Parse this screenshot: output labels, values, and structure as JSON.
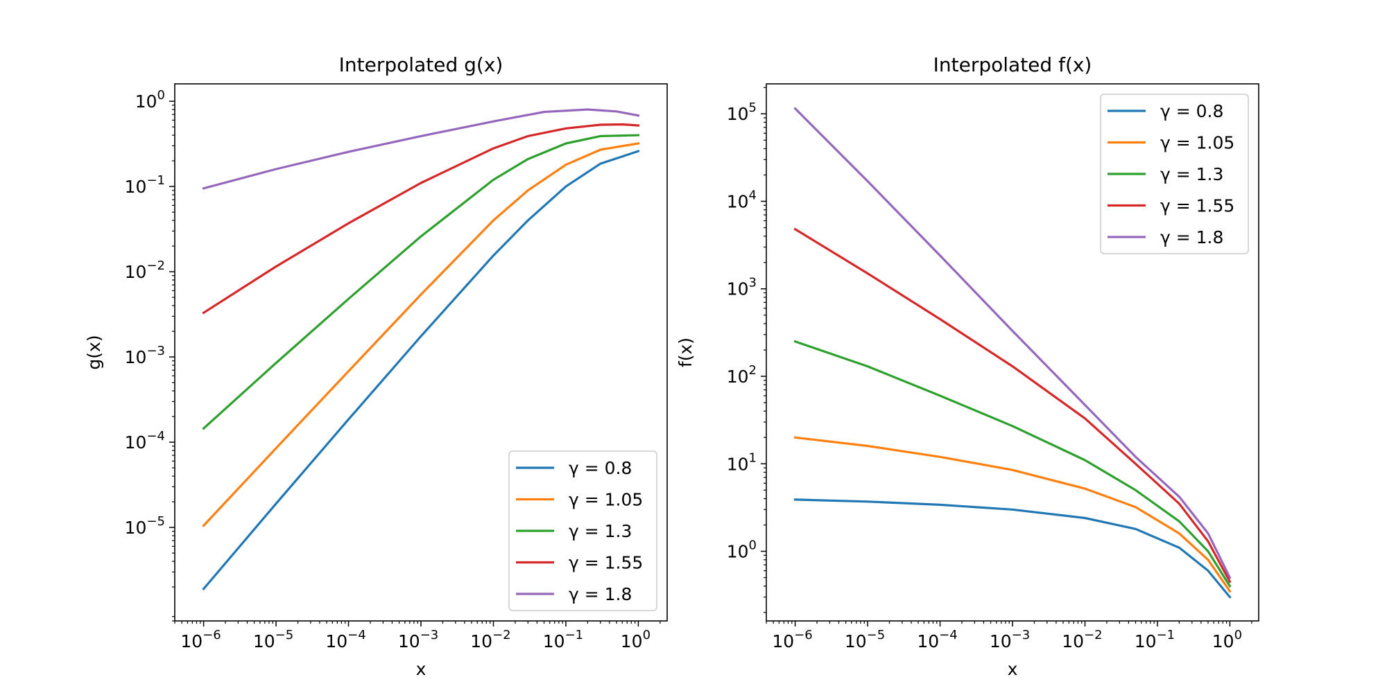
{
  "chart_data": [
    {
      "type": "line",
      "title": "Interpolated g(x)",
      "xlabel": "x",
      "ylabel": "g(x)",
      "xscale": "log",
      "yscale": "log",
      "xlim": [
        4e-07,
        2.5
      ],
      "ylim": [
        8e-07,
        1.6
      ],
      "x_ticks": [
        {
          "value": 1e-06,
          "label": "10",
          "exp": "−6"
        },
        {
          "value": 1e-05,
          "label": "10",
          "exp": "−5"
        },
        {
          "value": 0.0001,
          "label": "10",
          "exp": "−4"
        },
        {
          "value": 0.001,
          "label": "10",
          "exp": "−3"
        },
        {
          "value": 0.01,
          "label": "10",
          "exp": "−2"
        },
        {
          "value": 0.1,
          "label": "10",
          "exp": "−1"
        },
        {
          "value": 1,
          "label": "10",
          "exp": "0"
        }
      ],
      "y_ticks": [
        {
          "value": 1e-05,
          "label": "10",
          "exp": "−5"
        },
        {
          "value": 0.0001,
          "label": "10",
          "exp": "−4"
        },
        {
          "value": 0.001,
          "label": "10",
          "exp": "−3"
        },
        {
          "value": 0.01,
          "label": "10",
          "exp": "−2"
        },
        {
          "value": 0.1,
          "label": "10",
          "exp": "−1"
        },
        {
          "value": 1,
          "label": "10",
          "exp": "0"
        }
      ],
      "legend_position": "bottom-right",
      "series": [
        {
          "name": "γ = 0.8",
          "gamma": "0.8",
          "color": "#1f77b4",
          "x": [
            1e-06,
            1e-05,
            0.0001,
            0.001,
            0.01,
            0.03,
            0.1,
            0.3,
            1
          ],
          "y": [
            1.9e-06,
            1.9e-05,
            0.000185,
            0.00175,
            0.0155,
            0.04,
            0.1,
            0.185,
            0.26
          ]
        },
        {
          "name": "γ = 1.05",
          "gamma": "1.05",
          "color": "#ff7f0e",
          "x": [
            1e-06,
            1e-05,
            0.0001,
            0.001,
            0.01,
            0.03,
            0.1,
            0.3,
            1
          ],
          "y": [
            1.05e-05,
            8.5e-05,
            0.00068,
            0.0054,
            0.04,
            0.09,
            0.18,
            0.27,
            0.32
          ]
        },
        {
          "name": "γ = 1.3",
          "gamma": "1.3",
          "color": "#2ca02c",
          "x": [
            1e-06,
            1e-05,
            0.0001,
            0.001,
            0.01,
            0.03,
            0.1,
            0.3,
            1
          ],
          "y": [
            0.000145,
            0.00085,
            0.0048,
            0.026,
            0.12,
            0.21,
            0.32,
            0.39,
            0.4
          ]
        },
        {
          "name": "γ = 1.55",
          "gamma": "1.55",
          "color": "#d62728",
          "x": [
            1e-06,
            1e-05,
            0.0001,
            0.001,
            0.01,
            0.03,
            0.1,
            0.3,
            0.6,
            1
          ],
          "y": [
            0.0033,
            0.0115,
            0.037,
            0.11,
            0.28,
            0.39,
            0.48,
            0.53,
            0.535,
            0.52
          ]
        },
        {
          "name": "γ = 1.8",
          "gamma": "1.8",
          "color": "#9467bd",
          "x": [
            1e-06,
            1e-05,
            0.0001,
            0.001,
            0.01,
            0.05,
            0.2,
            0.5,
            1
          ],
          "y": [
            0.095,
            0.16,
            0.255,
            0.39,
            0.58,
            0.75,
            0.8,
            0.76,
            0.68
          ]
        }
      ]
    },
    {
      "type": "line",
      "title": "Interpolated f(x)",
      "xlabel": "x",
      "ylabel": "f(x)",
      "xscale": "log",
      "yscale": "log",
      "xlim": [
        4e-07,
        2.5
      ],
      "ylim": [
        0.16,
        220000.0
      ],
      "x_ticks": [
        {
          "value": 1e-06,
          "label": "10",
          "exp": "−6"
        },
        {
          "value": 1e-05,
          "label": "10",
          "exp": "−5"
        },
        {
          "value": 0.0001,
          "label": "10",
          "exp": "−4"
        },
        {
          "value": 0.001,
          "label": "10",
          "exp": "−3"
        },
        {
          "value": 0.01,
          "label": "10",
          "exp": "−2"
        },
        {
          "value": 0.1,
          "label": "10",
          "exp": "−1"
        },
        {
          "value": 1,
          "label": "10",
          "exp": "0"
        }
      ],
      "y_ticks": [
        {
          "value": 1,
          "label": "10",
          "exp": "0"
        },
        {
          "value": 10,
          "label": "10",
          "exp": "1"
        },
        {
          "value": 100,
          "label": "10",
          "exp": "2"
        },
        {
          "value": 1000,
          "label": "10",
          "exp": "3"
        },
        {
          "value": 10000,
          "label": "10",
          "exp": "4"
        },
        {
          "value": 100000,
          "label": "10",
          "exp": "5"
        }
      ],
      "legend_position": "top-right",
      "series": [
        {
          "name": "γ = 0.8",
          "gamma": "0.8",
          "color": "#1f77b4",
          "x": [
            1e-06,
            1e-05,
            0.0001,
            0.001,
            0.01,
            0.05,
            0.2,
            0.5,
            1
          ],
          "y": [
            3.9,
            3.7,
            3.4,
            3.0,
            2.4,
            1.8,
            1.1,
            0.6,
            0.3
          ]
        },
        {
          "name": "γ = 1.05",
          "gamma": "1.05",
          "color": "#ff7f0e",
          "x": [
            1e-06,
            1e-05,
            0.0001,
            0.001,
            0.01,
            0.05,
            0.2,
            0.5,
            1
          ],
          "y": [
            20,
            16,
            12,
            8.5,
            5.2,
            3.2,
            1.6,
            0.8,
            0.35
          ]
        },
        {
          "name": "γ = 1.3",
          "gamma": "1.3",
          "color": "#2ca02c",
          "x": [
            1e-06,
            1e-05,
            0.0001,
            0.001,
            0.01,
            0.05,
            0.2,
            0.5,
            1
          ],
          "y": [
            250,
            130,
            60,
            27,
            11,
            5.0,
            2.2,
            1.0,
            0.4
          ]
        },
        {
          "name": "γ = 1.55",
          "gamma": "1.55",
          "color": "#d62728",
          "x": [
            1e-06,
            1e-05,
            0.0001,
            0.001,
            0.01,
            0.05,
            0.2,
            0.5,
            1
          ],
          "y": [
            4800,
            1500,
            450,
            130,
            33,
            10,
            3.5,
            1.3,
            0.45
          ]
        },
        {
          "name": "γ = 1.8",
          "gamma": "1.8",
          "color": "#9467bd",
          "x": [
            1e-06,
            1e-05,
            0.0001,
            0.001,
            0.01,
            0.05,
            0.2,
            0.5,
            1
          ],
          "y": [
            115000,
            17000,
            2400,
            330,
            47,
            12,
            4.2,
            1.6,
            0.5
          ]
        }
      ]
    }
  ]
}
